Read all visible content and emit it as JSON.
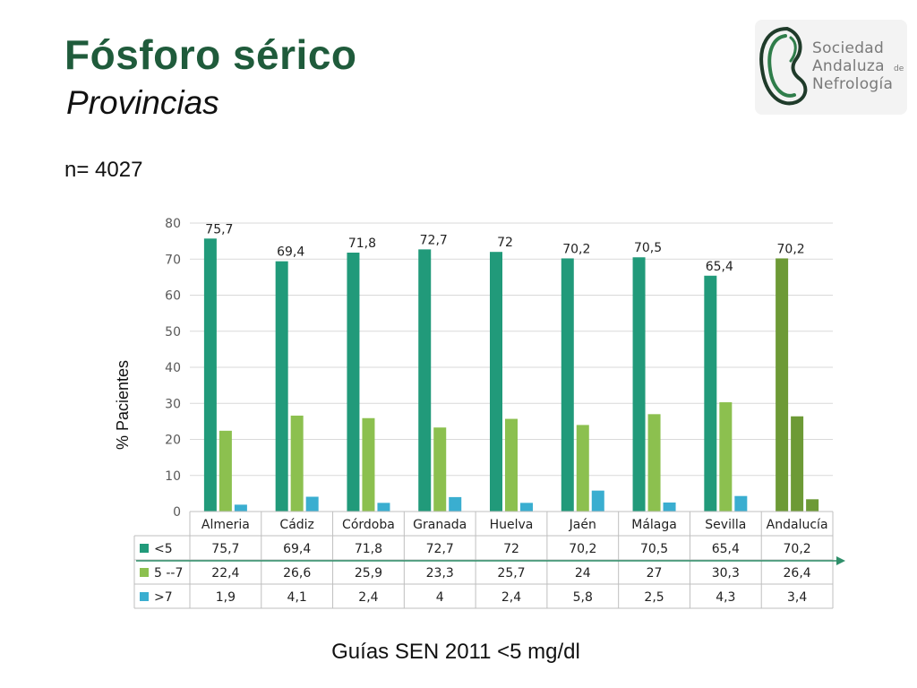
{
  "slide": {
    "title": "Fósforo sérico",
    "subtitle": "Provincias",
    "n_text": "n= 4027",
    "footnote": "Guías SEN 2011 <5 mg/dl"
  },
  "logo": {
    "line1": "Sociedad",
    "line2": "Andaluza",
    "de": "de",
    "line3": "Nefrología",
    "colors": {
      "green": "#2f7d4a",
      "dark": "#1f3b2a",
      "text": "#7a7a7a"
    }
  },
  "chart_data": {
    "type": "bar",
    "categories": [
      "Almeria",
      "Cádiz",
      "Córdoba",
      "Granada",
      "Huelva",
      "Jaén",
      "Málaga",
      "Sevilla",
      "Andalucía"
    ],
    "ylabel": "% Pacientes",
    "ylim": [
      0,
      80
    ],
    "yticks": [
      0,
      10,
      20,
      30,
      40,
      50,
      60,
      70,
      80
    ],
    "grid": true,
    "legend": "data-table below chart",
    "series": [
      {
        "name": "<5",
        "color": "#219a7a",
        "values": [
          75.7,
          69.4,
          71.8,
          72.7,
          72,
          70.2,
          70.5,
          65.4,
          70.2
        ],
        "labels": [
          "75,7",
          "69,4",
          "71,8",
          "72,7",
          "72",
          "70,2",
          "70,5",
          "65,4",
          "70,2"
        ]
      },
      {
        "name": "5 --7",
        "color": "#8cc04f",
        "values": [
          22.4,
          26.6,
          25.9,
          23.3,
          25.7,
          24,
          27,
          30.3,
          26.4
        ],
        "labels": [
          "22,4",
          "26,6",
          "25,9",
          "23,3",
          "25,7",
          "24",
          "27",
          "30,3",
          "26,4"
        ]
      },
      {
        "name": ">7",
        "color": "#3aaed0",
        "values": [
          1.9,
          4.1,
          2.4,
          4,
          2.4,
          5.8,
          2.5,
          4.3,
          3.4
        ],
        "labels": [
          "1,9",
          "4,1",
          "2,4",
          "4",
          "2,4",
          "5,8",
          "2,5",
          "4,3",
          "3,4"
        ]
      }
    ],
    "highlight": {
      "category": "Andalucía",
      "colors": [
        "#6d9a36",
        "#6d9a36",
        "#6d9a36"
      ]
    },
    "arrow_color": "#2f8f6a"
  }
}
